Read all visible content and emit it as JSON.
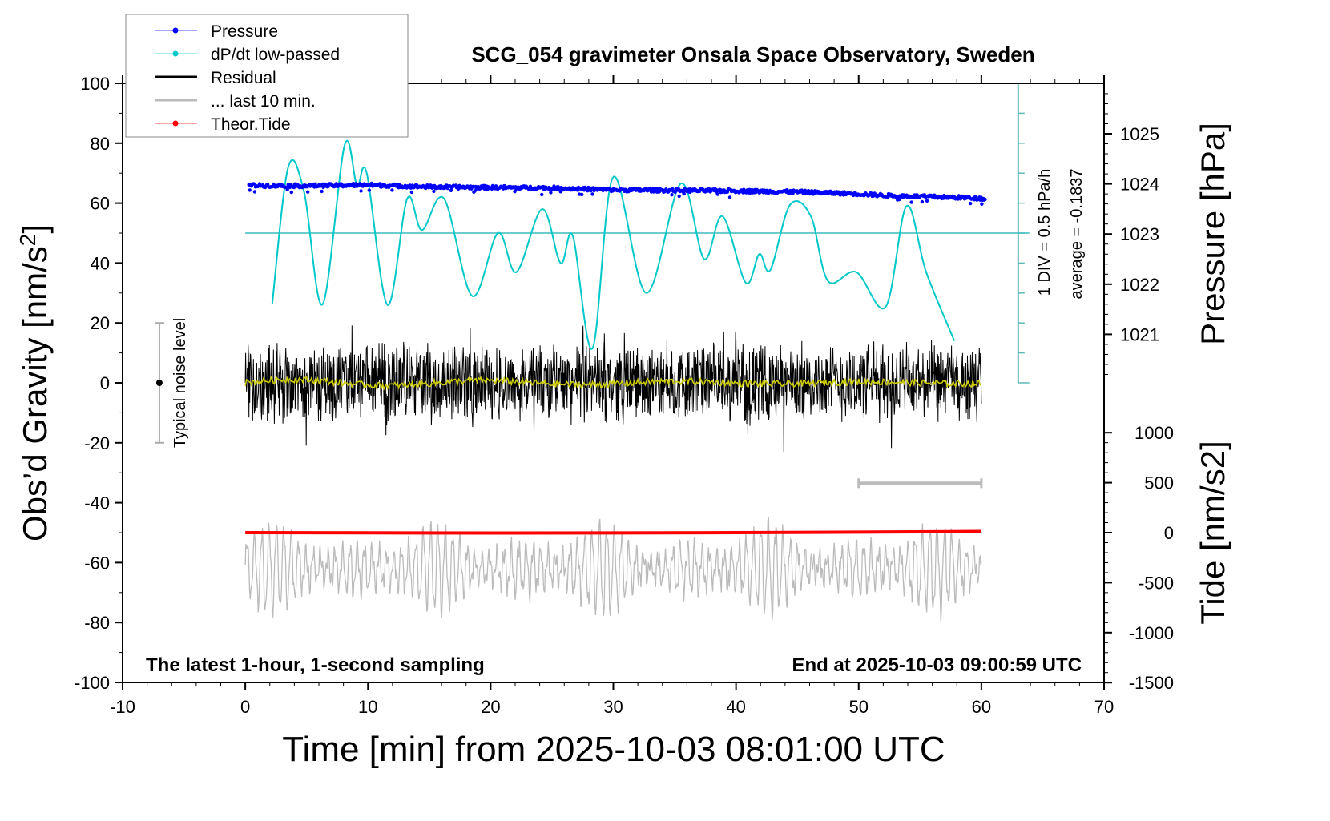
{
  "chart_data": {
    "type": "line",
    "title": "SCG_054 gravimeter Onsala Space Observatory, Sweden",
    "xlabel": "Time [min] from 2025-10-03 08:01:00 UTC",
    "ylabel": "Obs'd Gravity [nm/s2]",
    "ylabel_right_top": "Pressure [hPa]",
    "ylabel_right_bottom": "Tide [nm/s2]",
    "xlim": [
      -10,
      70
    ],
    "ylim": [
      -100,
      100
    ],
    "pressure_lim": [
      1021,
      1025
    ],
    "tide_lim": [
      -1500,
      1000
    ],
    "x_ticks": [
      "-10",
      "0",
      "10",
      "20",
      "30",
      "40",
      "50",
      "60",
      "70"
    ],
    "y_ticks": [
      "100",
      "80",
      "60",
      "40",
      "20",
      "0",
      "-20",
      "-40",
      "-60",
      "-80",
      "-100"
    ],
    "pressure_ticks": [
      "1025",
      "1024",
      "1023",
      "1022",
      "1021"
    ],
    "tide_ticks": [
      "1000",
      "500",
      "0",
      "-500",
      "-1000",
      "-1500"
    ],
    "legend": {
      "placement": "top-left",
      "entries": [
        {
          "label": "Pressure",
          "color": "#0000ff"
        },
        {
          "label": "dP/dt low-passed",
          "color": "#00c8c8"
        },
        {
          "label": "Residual",
          "color": "#000000"
        },
        {
          "label": "... last 10 min.",
          "color": "#bbbbbb"
        },
        {
          "label": "Theor.Tide",
          "color": "#ff0000"
        }
      ]
    },
    "annotations": {
      "div_label": "1 DIV = 0.5 hPa/h",
      "average_label": "average = -0.1837",
      "noise_label": "Typical noise level",
      "bottom_left": "The latest 1-hour, 1-second sampling",
      "bottom_right": "End at 2025-10-03 09:00:59 UTC"
    },
    "noise_level": {
      "x": -7,
      "range": [
        -20,
        20
      ]
    },
    "dpdt_average_y": 50,
    "dpdt_axis": {
      "x": 63,
      "range": [
        0,
        100
      ],
      "divisions": 10
    },
    "last10_bar": {
      "range": [
        50,
        60
      ],
      "y": -33.5
    },
    "series": [
      {
        "name": "Pressure",
        "unit": "hPa",
        "x": [
          0,
          5,
          10,
          15,
          20,
          25,
          30,
          35,
          40,
          45,
          50,
          52,
          55,
          58,
          60
        ],
        "values": [
          1023.97,
          1023.96,
          1023.98,
          1023.94,
          1023.93,
          1023.92,
          1023.88,
          1023.87,
          1023.86,
          1023.84,
          1023.8,
          1023.77,
          1023.75,
          1023.73,
          1023.71
        ]
      },
      {
        "name": "dP/dt low-passed",
        "unit": "gravity-axis",
        "x": [
          2.2,
          3.5,
          4.8,
          6.3,
          8.1,
          9.1,
          9.9,
          11.6,
          13.2,
          14.4,
          16.2,
          18.5,
          20.6,
          22.1,
          24.2,
          25.7,
          26.7,
          28.3,
          30,
          32.7,
          35.5,
          37.4,
          38.9,
          40.8,
          41.9,
          42.8,
          44.4,
          46.1,
          47.5,
          49.8,
          52.2,
          53.9,
          55.5,
          57.8
        ],
        "values": [
          26.5,
          72,
          63.6,
          26.2,
          79.4,
          66,
          70,
          26,
          61.5,
          51,
          61.5,
          29,
          50,
          37,
          58,
          40,
          49,
          11.5,
          68.7,
          30,
          66.5,
          41.4,
          55.6,
          33.4,
          43,
          37.7,
          59.4,
          55.6,
          34,
          37,
          25.4,
          59,
          37,
          14
        ]
      },
      {
        "name": "Residual",
        "x_range": [
          0,
          60
        ],
        "center": 0,
        "amplitude": 12
      },
      {
        "name": "Residual smoothed",
        "color": "#cccc00",
        "center": 0
      },
      {
        "name": "... last 10 min.",
        "x_range": [
          0,
          60
        ],
        "center": -62,
        "amplitude": 14
      },
      {
        "name": "Theor.Tide",
        "unit": "nm/s2",
        "x": [
          0,
          10,
          20,
          30,
          40,
          50,
          60
        ],
        "values": [
          0,
          -2,
          -4,
          -3,
          0,
          5,
          12
        ]
      }
    ]
  }
}
